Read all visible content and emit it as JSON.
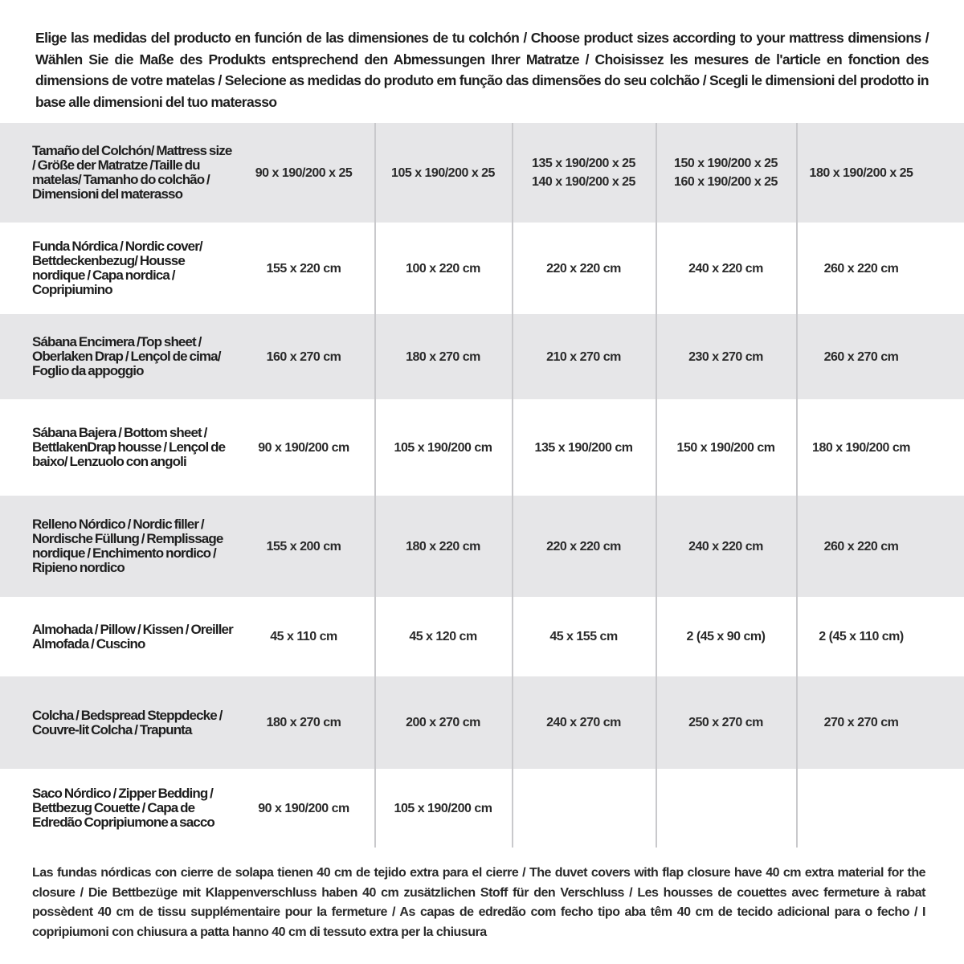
{
  "intro": "Elige las medidas del producto en función de las dimensiones de tu colchón / Choose product sizes according to your mattress dimensions / Wählen Sie die Maße des Produkts entsprechend den Abmessungen Ihrer Matratze / Choisissez les mesures de l'article en fonction des dimensions de votre matelas / Selecione as medidas do produto em função das dimensões do seu colchão / Scegli le dimensioni del prodotto in base alle dimensioni del tuo materasso",
  "rows": [
    {
      "label": "Tamaño del Colchón/ Mattress size / Größe der Matratze /Taille du matelas/ Tamanho do colchão / Dimensioni del materasso",
      "cells": [
        "90 x 190/200 x 25",
        "105 x 190/200 x 25",
        "135 x 190/200 x 25\n140 x 190/200 x 25",
        "150 x 190/200 x 25\n160 x 190/200 x 25",
        "180 x 190/200 x 25"
      ]
    },
    {
      "label": "Funda Nórdica / Nordic cover/ Bettdeckenbezug/ Housse nordique / Capa nordica / Copripiumino",
      "cells": [
        "155 x 220 cm",
        "100 x 220 cm",
        "220 x 220 cm",
        "240 x 220 cm",
        "260 x 220 cm"
      ]
    },
    {
      "label": "Sábana Encimera /Top sheet / Oberlaken Drap / Lençol de cima/ Foglio da appoggio",
      "cells": [
        "160 x 270 cm",
        "180 x 270 cm",
        "210 x 270 cm",
        "230 x 270 cm",
        "260 x 270 cm"
      ]
    },
    {
      "label": "Sábana Bajera / Bottom sheet / BettlakenDrap housse / Lençol de baixo/ Lenzuolo con angoli",
      "cells": [
        "90 x 190/200 cm",
        "105 x 190/200 cm",
        "135 x 190/200 cm",
        "150 x 190/200 cm",
        "180 x 190/200 cm"
      ]
    },
    {
      "label": "Relleno Nórdico / Nordic filler / Nordische Füllung / Remplissage nordique / Enchimento nordico / Ripieno nordico",
      "cells": [
        "155 x 200 cm",
        "180 x 220 cm",
        "220 x 220 cm",
        "240 x 220 cm",
        "260 x 220 cm"
      ]
    },
    {
      "label": "Almohada / Pillow / Kissen / Oreiller Almofada / Cuscino",
      "cells": [
        "45 x 110 cm",
        "45 x 120 cm",
        "45 x 155 cm",
        "2 (45 x 90 cm)",
        "2 (45 x 110 cm)"
      ]
    },
    {
      "label": "Colcha / Bedspread Steppdecke / Couvre-lit Colcha / Trapunta",
      "cells": [
        "180 x 270 cm",
        "200 x 270 cm",
        "240 x 270 cm",
        "250 x 270 cm",
        "270 x 270 cm"
      ]
    },
    {
      "label": "Saco Nórdico / Zipper Bedding / Bettbezug Couette / Capa de Edredão Copripiumone a sacco",
      "cells": [
        "90 x 190/200 cm",
        "105 x 190/200 cm",
        "",
        "",
        ""
      ]
    }
  ],
  "footer": "Las fundas nórdicas con cierre de solapa tienen 40 cm de tejido extra para el cierre / The duvet covers with flap closure have 40 cm extra material for the closure / Die Bettbezüge mit Klappenverschluss haben 40 cm zusätzlichen Stoff für den Verschluss / Les housses de couettes avec fermeture à rabat possèdent 40 cm de tissu supplémentaire pour la fermeture / As capas de edredão com fecho tipo aba têm 40 cm de tecido adicional para o fecho / I copripiumoni con chiusura a patta hanno 40 cm di tessuto extra per la chiusura",
  "colors": {
    "row_shade": "#e6e6e8",
    "divider": "#c9c9cc",
    "text": "#1e1e1e"
  }
}
